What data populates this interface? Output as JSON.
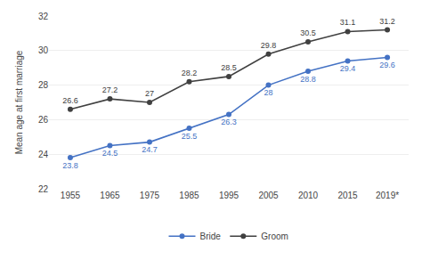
{
  "chart_data": {
    "type": "line",
    "categories": [
      "1955",
      "1965",
      "1975",
      "1985",
      "1995",
      "2005",
      "2010",
      "2015",
      "2019*"
    ],
    "series": [
      {
        "name": "Bride",
        "color": "#4472c4",
        "marker": "circle",
        "values": [
          23.8,
          24.5,
          24.7,
          25.5,
          26.3,
          28.0,
          28.8,
          29.4,
          29.6
        ]
      },
      {
        "name": "Groom",
        "color": "#404040",
        "marker": "circle",
        "values": [
          26.6,
          27.2,
          27.0,
          28.2,
          28.5,
          29.8,
          30.5,
          31.1,
          31.2
        ]
      }
    ],
    "ylabel": "Mean age at first marriage",
    "ylim": [
      22,
      32
    ],
    "yticks": [
      22,
      24,
      26,
      28,
      30,
      32
    ],
    "grid": true,
    "legend": "bottom",
    "data_labels": true
  }
}
